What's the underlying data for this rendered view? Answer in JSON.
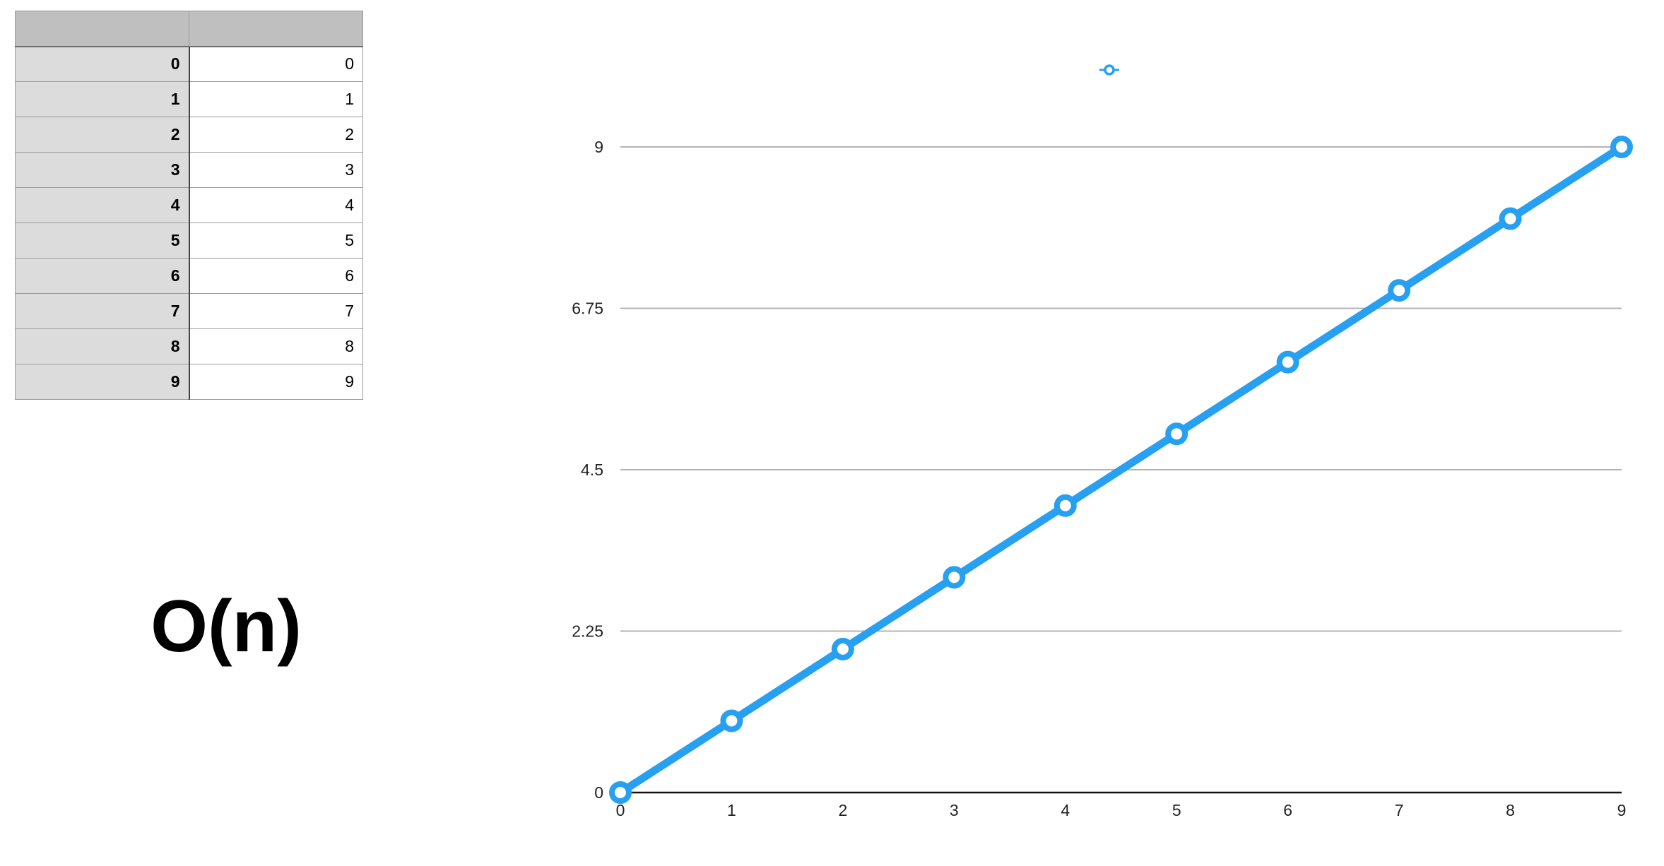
{
  "table": {
    "headers": [
      "",
      ""
    ],
    "rows": [
      {
        "key": "0",
        "value": "0"
      },
      {
        "key": "1",
        "value": "1"
      },
      {
        "key": "2",
        "value": "2"
      },
      {
        "key": "3",
        "value": "3"
      },
      {
        "key": "4",
        "value": "4"
      },
      {
        "key": "5",
        "value": "5"
      },
      {
        "key": "6",
        "value": "6"
      },
      {
        "key": "7",
        "value": "7"
      },
      {
        "key": "8",
        "value": "8"
      },
      {
        "key": "9",
        "value": "9"
      }
    ]
  },
  "label": "O(n)",
  "chart_data": {
    "type": "line",
    "x": [
      0,
      1,
      2,
      3,
      4,
      5,
      6,
      7,
      8,
      9
    ],
    "series": [
      {
        "values": [
          0,
          1,
          2,
          3,
          4,
          5,
          6,
          7,
          8,
          9
        ],
        "color": "#27a0f1"
      }
    ],
    "xticks": [
      "0",
      "1",
      "2",
      "3",
      "4",
      "5",
      "6",
      "7",
      "8",
      "9"
    ],
    "yticks": [
      "0",
      "2.25",
      "4.5",
      "6.75",
      "9"
    ],
    "ylim": [
      0,
      9
    ],
    "xlim": [
      0,
      9
    ],
    "grid": true,
    "legend": "top-center",
    "title": "",
    "xlabel": "",
    "ylabel": ""
  }
}
